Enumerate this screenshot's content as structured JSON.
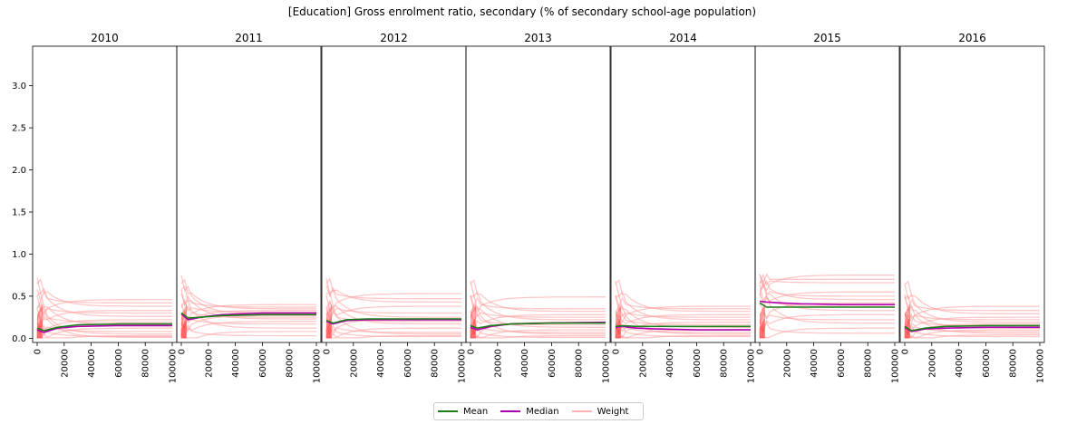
{
  "chart_data": {
    "type": "line",
    "title": "[Education] Gross enrolment ratio, secondary (% of secondary school-age population)",
    "xlim": [
      0,
      100000
    ],
    "ylim": [
      0,
      3.4
    ],
    "x_ticks": [
      0,
      20000,
      40000,
      60000,
      80000,
      100000
    ],
    "y_ticks": [
      0.0,
      0.5,
      1.0,
      1.5,
      2.0,
      2.5,
      3.0
    ],
    "y_tick_labels": [
      "0.0",
      "0.5",
      "1.0",
      "1.5",
      "2.0",
      "2.5",
      "3.0"
    ],
    "legend": {
      "placement": "bottom-center",
      "entries": [
        {
          "name": "Mean",
          "color": "#1a7f1a"
        },
        {
          "name": "Median",
          "color": "#b000b0"
        },
        {
          "name": "Weight",
          "color": "#ffb3b3"
        }
      ]
    },
    "panels": [
      {
        "title": "2010",
        "mean": [
          [
            0,
            0.12
          ],
          [
            5000,
            0.09
          ],
          [
            15000,
            0.13
          ],
          [
            30000,
            0.16
          ],
          [
            60000,
            0.17
          ],
          [
            100000,
            0.17
          ]
        ],
        "median": [
          [
            0,
            0.1
          ],
          [
            5000,
            0.07
          ],
          [
            15000,
            0.12
          ],
          [
            30000,
            0.14
          ],
          [
            60000,
            0.15
          ],
          [
            100000,
            0.15
          ]
        ],
        "weights_final": [
          0.46,
          0.42,
          0.38,
          0.33,
          0.3,
          0.26,
          0.22,
          0.19,
          0.16,
          0.12,
          0.08,
          0.05,
          0.03,
          0.02,
          0.01
        ]
      },
      {
        "title": "2011",
        "mean": [
          [
            0,
            0.3
          ],
          [
            5000,
            0.24
          ],
          [
            15000,
            0.25
          ],
          [
            30000,
            0.27
          ],
          [
            60000,
            0.28
          ],
          [
            100000,
            0.28
          ]
        ],
        "median": [
          [
            0,
            0.29
          ],
          [
            5000,
            0.22
          ],
          [
            15000,
            0.25
          ],
          [
            30000,
            0.28
          ],
          [
            60000,
            0.3
          ],
          [
            100000,
            0.3
          ]
        ],
        "weights_final": [
          0.4,
          0.37,
          0.35,
          0.33,
          0.31,
          0.29,
          0.27,
          0.25,
          0.23,
          0.2,
          0.17,
          0.12,
          0.08,
          0.03
        ]
      },
      {
        "title": "2012",
        "mean": [
          [
            0,
            0.21
          ],
          [
            5000,
            0.18
          ],
          [
            15000,
            0.22
          ],
          [
            30000,
            0.23
          ],
          [
            60000,
            0.23
          ],
          [
            100000,
            0.23
          ]
        ],
        "median": [
          [
            0,
            0.2
          ],
          [
            5000,
            0.17
          ],
          [
            15000,
            0.21
          ],
          [
            30000,
            0.22
          ],
          [
            60000,
            0.22
          ],
          [
            100000,
            0.22
          ]
        ],
        "weights_final": [
          0.53,
          0.47,
          0.43,
          0.38,
          0.3,
          0.25,
          0.23,
          0.2,
          0.17,
          0.12,
          0.07,
          0.05,
          0.03,
          0.02
        ]
      },
      {
        "title": "2013",
        "mean": [
          [
            0,
            0.15
          ],
          [
            5000,
            0.12
          ],
          [
            15000,
            0.15
          ],
          [
            30000,
            0.17
          ],
          [
            60000,
            0.18
          ],
          [
            100000,
            0.18
          ]
        ],
        "median": [
          [
            0,
            0.13
          ],
          [
            5000,
            0.1
          ],
          [
            15000,
            0.14
          ],
          [
            30000,
            0.17
          ],
          [
            60000,
            0.18
          ],
          [
            100000,
            0.19
          ]
        ],
        "weights_final": [
          0.49,
          0.35,
          0.32,
          0.28,
          0.25,
          0.22,
          0.19,
          0.16,
          0.13,
          0.1,
          0.07,
          0.05,
          0.03,
          0.01
        ]
      },
      {
        "title": "2014",
        "mean": [
          [
            0,
            0.14
          ],
          [
            5000,
            0.15
          ],
          [
            15000,
            0.14
          ],
          [
            30000,
            0.14
          ],
          [
            60000,
            0.14
          ],
          [
            100000,
            0.14
          ]
        ],
        "median": [
          [
            0,
            0.13
          ],
          [
            5000,
            0.14
          ],
          [
            15000,
            0.12
          ],
          [
            30000,
            0.11
          ],
          [
            60000,
            0.1
          ],
          [
            100000,
            0.1
          ]
        ],
        "weights_final": [
          0.38,
          0.35,
          0.32,
          0.28,
          0.25,
          0.22,
          0.19,
          0.16,
          0.13,
          0.1,
          0.07,
          0.05,
          0.03,
          0.02
        ]
      },
      {
        "title": "2015",
        "mean": [
          [
            0,
            0.42
          ],
          [
            5000,
            0.37
          ],
          [
            15000,
            0.37
          ],
          [
            30000,
            0.37
          ],
          [
            60000,
            0.37
          ],
          [
            100000,
            0.37
          ]
        ],
        "median": [
          [
            0,
            0.44
          ],
          [
            5000,
            0.43
          ],
          [
            15000,
            0.42
          ],
          [
            30000,
            0.41
          ],
          [
            60000,
            0.4
          ],
          [
            100000,
            0.4
          ]
        ],
        "weights_final": [
          0.75,
          0.7,
          0.66,
          0.55,
          0.5,
          0.46,
          0.42,
          0.38,
          0.33,
          0.28,
          0.22,
          0.18,
          0.12,
          0.06
        ]
      },
      {
        "title": "2016",
        "mean": [
          [
            0,
            0.14
          ],
          [
            5000,
            0.09
          ],
          [
            15000,
            0.12
          ],
          [
            30000,
            0.14
          ],
          [
            60000,
            0.15
          ],
          [
            100000,
            0.15
          ]
        ],
        "median": [
          [
            0,
            0.13
          ],
          [
            5000,
            0.08
          ],
          [
            15000,
            0.11
          ],
          [
            30000,
            0.12
          ],
          [
            60000,
            0.13
          ],
          [
            100000,
            0.13
          ]
        ],
        "weights_final": [
          0.38,
          0.33,
          0.29,
          0.25,
          0.22,
          0.19,
          0.17,
          0.15,
          0.12,
          0.1,
          0.08,
          0.06,
          0.04,
          0.02
        ]
      }
    ]
  }
}
